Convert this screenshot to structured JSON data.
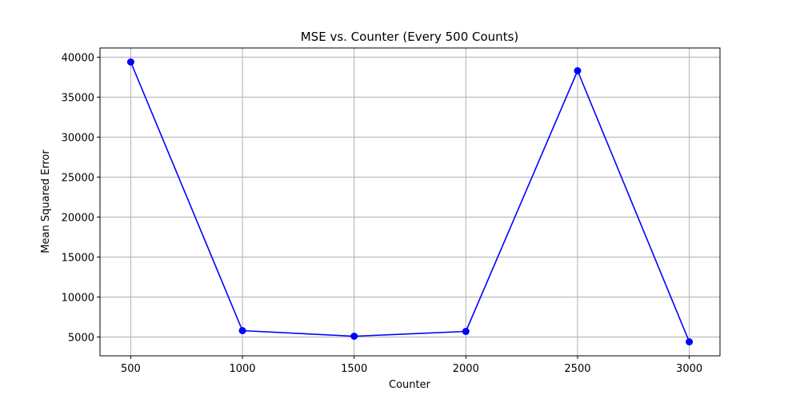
{
  "chart_data": {
    "type": "line",
    "title": "MSE vs. Counter (Every 500 Counts)",
    "xlabel": "Counter",
    "ylabel": "Mean Squared Error",
    "x": [
      500,
      1000,
      1500,
      2000,
      2500,
      3000
    ],
    "series": [
      {
        "values": [
          39400,
          5800,
          5100,
          5700,
          38300,
          4400
        ],
        "color": "#0000ff",
        "marker": "circle"
      }
    ],
    "xticks": [
      500,
      1000,
      1500,
      2000,
      2500,
      3000
    ],
    "yticks": [
      5000,
      10000,
      15000,
      20000,
      25000,
      30000,
      35000,
      40000
    ],
    "xlim": [
      362.5,
      3137.5
    ],
    "ylim": [
      2650,
      41150
    ],
    "grid": true,
    "legend": "none"
  }
}
